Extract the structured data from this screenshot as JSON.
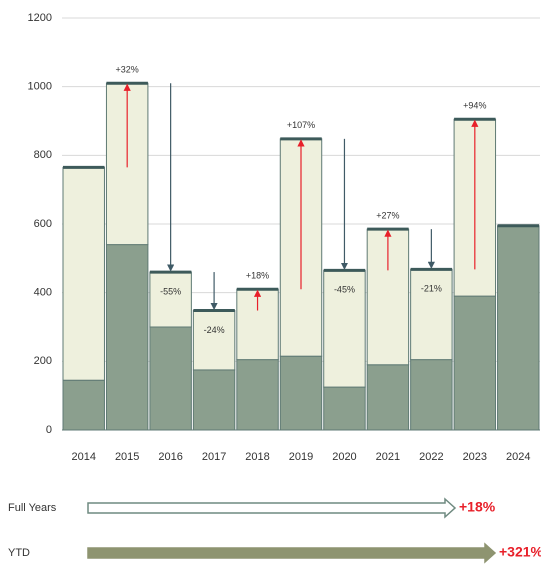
{
  "chart_data": {
    "type": "stacked_bar",
    "categories": [
      "2014",
      "2015",
      "2016",
      "2017",
      "2018",
      "2019",
      "2020",
      "2021",
      "2022",
      "2023",
      "2024"
    ],
    "series": [
      {
        "name": "YTD",
        "color": "#8b9f8e",
        "values": [
          145,
          540,
          300,
          175,
          205,
          215,
          125,
          190,
          205,
          390,
          595
        ]
      },
      {
        "name": "Full Years",
        "color": "#eef0dd",
        "values": [
          620,
          470,
          160,
          173,
          205,
          633,
          340,
          395,
          263,
          515,
          0
        ]
      }
    ],
    "changes": {
      "values": [
        null,
        32,
        -55,
        -24,
        18,
        107,
        -45,
        27,
        -21,
        94,
        null
      ],
      "value_labels": [
        null,
        "+32%",
        "-55%",
        "-24%",
        "+18%",
        "+107%",
        "-45%",
        "+27%",
        "-21%",
        "+94%",
        null
      ]
    },
    "ylim": [
      0,
      1200
    ],
    "yticks": [
      0,
      200,
      400,
      600,
      800,
      1000,
      1200
    ],
    "grid": true,
    "summary": [
      {
        "label": "Full Years",
        "value": 18,
        "value_label": "+18%"
      },
      {
        "label": "YTD",
        "value": 321,
        "value_label": "+321%"
      }
    ]
  }
}
